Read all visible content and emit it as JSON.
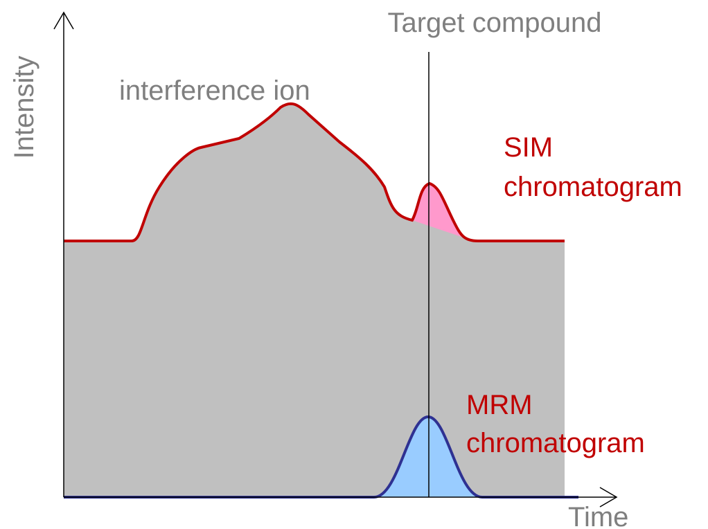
{
  "title": "Target compound",
  "y_axis_label": "Intensity",
  "x_axis_label": "Time",
  "interference_label": "interference ion",
  "sim_label": {
    "line1": "SIM",
    "line2": "chromatogram"
  },
  "mrm_label": {
    "line1": "MRM",
    "line2": "chromatogram"
  }
}
